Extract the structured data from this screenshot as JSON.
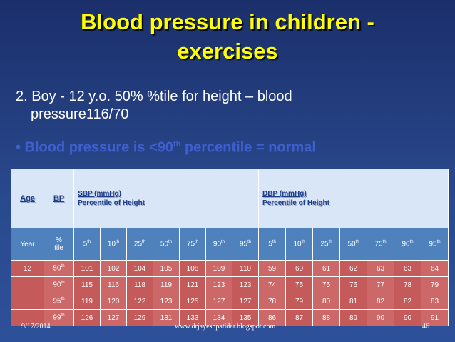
{
  "title_line1": "Blood pressure in children -",
  "title_line2": "exercises",
  "case_line1": "2. Boy - 12 y.o. 50% %tile for height – blood",
  "case_line2": "pressure116/70",
  "bullet_prefix": "• Blood pressure is <90",
  "bullet_sup": "th",
  "bullet_suffix": " percentile = normal",
  "table": {
    "age_header": "Age",
    "bp_header": "BP",
    "sbp_header": "SBP (mmHg)",
    "dbp_header": "DBP (mmHg)",
    "percentile_label": "Percentile of Height",
    "year_label": "Year",
    "tile_label_line1": "%",
    "tile_label_line2": "tile",
    "height_percentiles": [
      {
        "n": "5",
        "s": "th"
      },
      {
        "n": "10",
        "s": "th"
      },
      {
        "n": "25",
        "s": "th"
      },
      {
        "n": "50",
        "s": "th"
      },
      {
        "n": "75",
        "s": "th"
      },
      {
        "n": "90",
        "s": "th"
      },
      {
        "n": "95",
        "s": "th"
      }
    ],
    "rows": [
      {
        "age": "12",
        "bp": "50",
        "bp_sup": "th",
        "sbp": [
          "101",
          "102",
          "104",
          "105",
          "108",
          "109",
          "110"
        ],
        "dbp": [
          "59",
          "60",
          "61",
          "62",
          "63",
          "63",
          "64"
        ]
      },
      {
        "age": "",
        "bp": "90",
        "bp_sup": "th",
        "sbp": [
          "115",
          "116",
          "118",
          "119",
          "121",
          "123",
          "123"
        ],
        "dbp": [
          "74",
          "75",
          "75",
          "76",
          "77",
          "78",
          "79"
        ]
      },
      {
        "age": "",
        "bp": "95",
        "bp_sup": "th",
        "sbp": [
          "119",
          "120",
          "122",
          "123",
          "125",
          "127",
          "127"
        ],
        "dbp": [
          "78",
          "79",
          "80",
          "81",
          "82",
          "82",
          "83"
        ]
      },
      {
        "age": "",
        "bp": "99",
        "bp_sup": "th",
        "sbp": [
          "126",
          "127",
          "129",
          "131",
          "133",
          "134",
          "135"
        ],
        "dbp": [
          "86",
          "87",
          "88",
          "89",
          "90",
          "90",
          "91"
        ]
      }
    ]
  },
  "footer": {
    "date": "9/17/2014",
    "url": "www.drjayeshpatidar.blogspot.com",
    "page": "46"
  }
}
